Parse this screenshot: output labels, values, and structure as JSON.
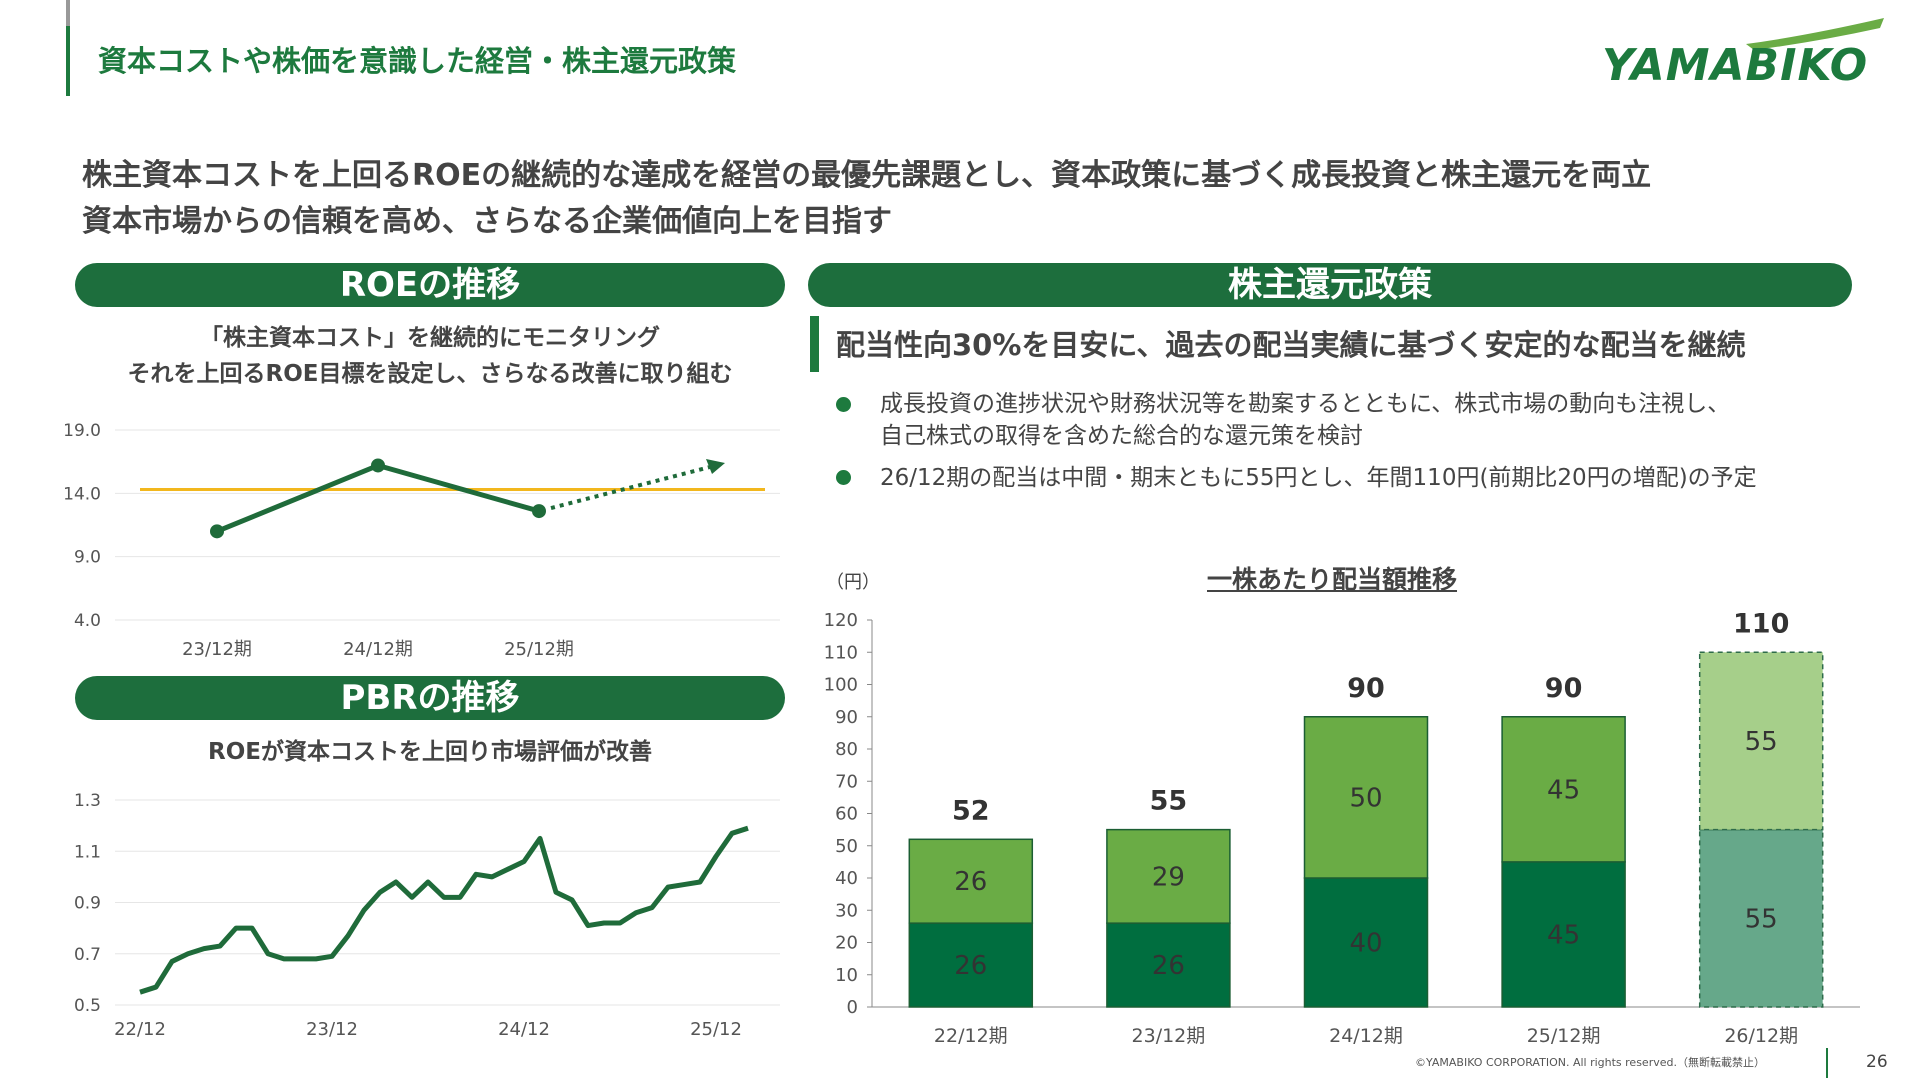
{
  "header": {
    "title": "資本コストや株価を意識した経営・株主還元政策",
    "logo_text": "YAMABIKO"
  },
  "lead": {
    "line1": "株主資本コストを上回るROEの継続的な達成を経営の最優先課題とし、資本政策に基づく成長投資と株主還元を両立",
    "line2": "資本市場からの信頼を高め、さらなる企業価値向上を目指す"
  },
  "roe_section": {
    "heading": "ROEの推移",
    "sub1": "「株主資本コスト」を継続的にモニタリング",
    "sub2": "それを上回るROE目標を設定し、さらなる改善に取り組む"
  },
  "pbr_section": {
    "heading": "PBRの推移",
    "sub": "ROEが資本コストを上回り市場評価が改善"
  },
  "policy_section": {
    "heading": "株主還元政策",
    "headline": "配当性向30%を目安に、過去の配当実績に基づく安定的な配当を継続",
    "bullet1_line1": "成長投資の進捗状況や財務状況等を勘案するとともに、株式市場の動向も注視し、",
    "bullet1_line2": "自己株式の取得を含めた総合的な還元策を検討",
    "bullet2": "26/12期の配当は中間・期末ともに55円とし、年間110円(前期比20円の増配)の予定"
  },
  "dividend_chart_title": "一株あたり配当額推移",
  "footer": {
    "copyright": "©YAMABIKO CORPORATION. All rights reserved.（無断転載禁止）",
    "page": "26"
  },
  "colors": {
    "brand_green": "#1d7a3e",
    "roe_line": "#1f6b3a",
    "cost_line": "#f2b71d",
    "bar_dark": "#006e3f",
    "bar_light": "#6aac45",
    "bar_forecast_light": "#a6cf8a",
    "bar_forecast_dark": "#66a88a"
  },
  "chart_data": [
    {
      "type": "line",
      "categories": [
        "23/12期",
        "24/12期",
        "25/12期"
      ],
      "series": [
        {
          "values": [
            11.0,
            16.2,
            12.6
          ]
        }
      ],
      "reference_line": 14.3,
      "forecast_trend": "upward",
      "yticks": [
        "19.0",
        "14.0",
        "9.0",
        "4.0"
      ],
      "ylim": [
        4.0,
        19.0
      ],
      "grid": true
    },
    {
      "type": "line",
      "xticks": [
        "22/12",
        "23/12",
        "24/12",
        "25/12"
      ],
      "series": [
        {
          "values": [
            0.55,
            0.57,
            0.67,
            0.7,
            0.72,
            0.73,
            0.8,
            0.8,
            0.7,
            0.68,
            0.68,
            0.68,
            0.69,
            0.77,
            0.87,
            0.94,
            0.98,
            0.92,
            0.98,
            0.92,
            0.92,
            1.01,
            1.0,
            1.03,
            1.06,
            1.15,
            0.94,
            0.91,
            0.81,
            0.82,
            0.82,
            0.86,
            0.88,
            0.96,
            0.97,
            0.98,
            1.08,
            1.17,
            1.19
          ]
        }
      ],
      "yticks": [
        "1.3",
        "1.1",
        "0.9",
        "0.7",
        "0.5"
      ],
      "ylim": [
        0.5,
        1.3
      ],
      "grid": true
    },
    {
      "type": "bar",
      "stacked": true,
      "ylabel": "（円）",
      "categories": [
        "22/12期",
        "23/12期",
        "24/12期",
        "25/12期",
        "26/12期"
      ],
      "series": [
        {
          "values": [
            26,
            26,
            40,
            45,
            55
          ]
        },
        {
          "values": [
            26,
            29,
            50,
            45,
            55
          ]
        }
      ],
      "totals": [
        52,
        55,
        90,
        90,
        110
      ],
      "forecast_index": 4,
      "yticks": [
        "0",
        "10",
        "20",
        "30",
        "40",
        "50",
        "60",
        "70",
        "80",
        "90",
        "100",
        "110",
        "120"
      ],
      "ylim": [
        0,
        120
      ]
    }
  ]
}
